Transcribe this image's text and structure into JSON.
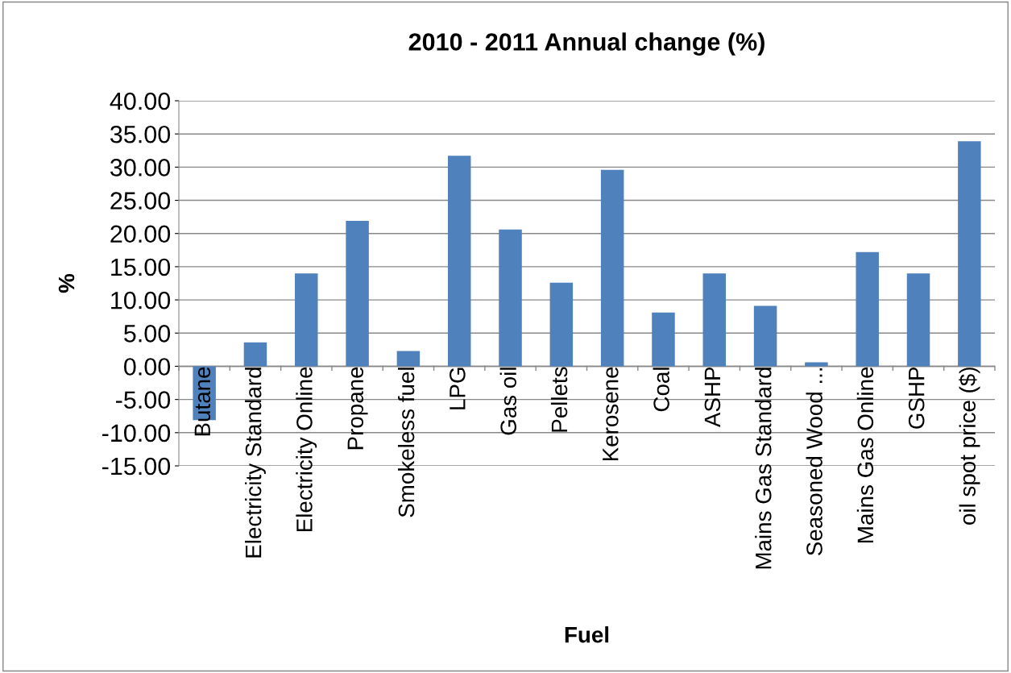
{
  "chart_data": {
    "type": "bar",
    "title": "2010 - 2011 Annual change (%)",
    "xlabel": "Fuel",
    "ylabel": "%",
    "categories": [
      "Butane",
      "Electricity Standard",
      "Electricity Online",
      "Propane",
      "Smokeless fuel",
      "LPG",
      "Gas oil",
      "Pellets",
      "Kerosene",
      "Coal",
      "ASHP",
      "Mains Gas Standard",
      "Seasoned Wood ...",
      "Mains Gas Online",
      "GSHP",
      "oil spot price ($)"
    ],
    "values": [
      -8.1,
      3.6,
      14.0,
      21.9,
      2.3,
      31.7,
      20.6,
      12.6,
      29.6,
      8.1,
      14.0,
      9.1,
      0.6,
      17.2,
      14.0,
      33.9
    ],
    "color": "#4f81bd",
    "ylim": [
      -15,
      40
    ],
    "yticks": [
      {
        "value": -15,
        "label": "-15.00"
      },
      {
        "value": -10,
        "label": "-10.00"
      },
      {
        "value": -5,
        "label": "-5.00"
      },
      {
        "value": 0,
        "label": "0.00"
      },
      {
        "value": 5,
        "label": "5.00"
      },
      {
        "value": 10,
        "label": "10.00"
      },
      {
        "value": 15,
        "label": "15.00"
      },
      {
        "value": 20,
        "label": "20.00"
      },
      {
        "value": 25,
        "label": "25.00"
      },
      {
        "value": 30,
        "label": "30.00"
      },
      {
        "value": 35,
        "label": "35.00"
      },
      {
        "value": 40,
        "label": "40.00"
      }
    ],
    "grid": "y",
    "legend": false
  }
}
